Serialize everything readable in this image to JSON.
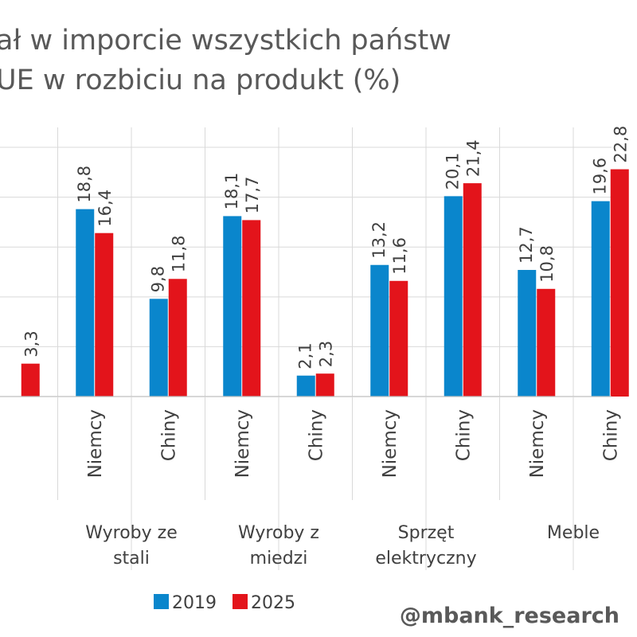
{
  "title_lines": [
    "ał w imporcie wszystkich państw",
    "UE w rozbiciu na produkt (%)"
  ],
  "watermark": "@mbank_research",
  "colors": {
    "s2019": "#0A86CC",
    "s2025": "#E3141B",
    "grid": "#D9D9D9",
    "text": "#404040"
  },
  "legend": [
    {
      "name": "2019",
      "color": "#0A86CC"
    },
    {
      "name": "2025",
      "color": "#E3141B"
    }
  ],
  "chart_data": {
    "type": "bar",
    "ylim": [
      0,
      27
    ],
    "grid": true,
    "legend_position": "bottom-center",
    "series_names": [
      "2019",
      "2025"
    ],
    "partial_left": {
      "group_label": "",
      "country": "",
      "values": [
        null,
        3.3
      ],
      "value_labels": [
        "",
        "3,3"
      ]
    },
    "groups": [
      {
        "label_lines": [
          "Wyroby ze",
          "stali"
        ],
        "countries": [
          {
            "name": "Niemcy",
            "values": [
              18.8,
              16.4
            ],
            "value_labels": [
              "18,8",
              "16,4"
            ]
          },
          {
            "name": "Chiny",
            "values": [
              9.8,
              11.8
            ],
            "value_labels": [
              "9,8",
              "11,8"
            ]
          }
        ]
      },
      {
        "label_lines": [
          "Wyroby z",
          "miedzi"
        ],
        "countries": [
          {
            "name": "Niemcy",
            "values": [
              18.1,
              17.7
            ],
            "value_labels": [
              "18,1",
              "17,7"
            ]
          },
          {
            "name": "Chiny",
            "values": [
              2.1,
              2.3
            ],
            "value_labels": [
              "2,1",
              "2,3"
            ]
          }
        ]
      },
      {
        "label_lines": [
          "Sprzęt",
          "elektryczny"
        ],
        "countries": [
          {
            "name": "Niemcy",
            "values": [
              13.2,
              11.6
            ],
            "value_labels": [
              "13,2",
              "11,6"
            ]
          },
          {
            "name": "Chiny",
            "values": [
              20.1,
              21.4
            ],
            "value_labels": [
              "20,1",
              "21,4"
            ]
          }
        ]
      },
      {
        "label_lines": [
          "Meble"
        ],
        "countries": [
          {
            "name": "Niemcy",
            "values": [
              12.7,
              10.8
            ],
            "value_labels": [
              "12,7",
              "10,8"
            ]
          },
          {
            "name": "Chiny",
            "values": [
              19.6,
              22.8
            ],
            "value_labels": [
              "19,6",
              "22,8"
            ]
          }
        ]
      }
    ]
  }
}
